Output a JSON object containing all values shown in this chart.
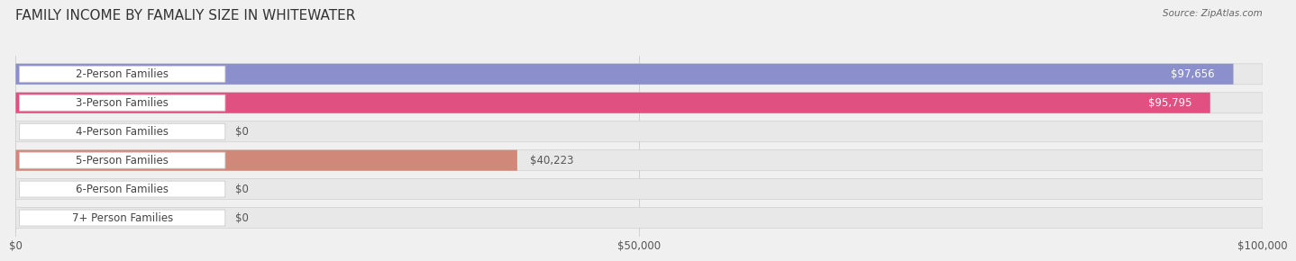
{
  "title": "FAMILY INCOME BY FAMALIY SIZE IN WHITEWATER",
  "source": "Source: ZipAtlas.com",
  "categories": [
    "2-Person Families",
    "3-Person Families",
    "4-Person Families",
    "5-Person Families",
    "6-Person Families",
    "7+ Person Families"
  ],
  "values": [
    97656,
    95795,
    0,
    40223,
    0,
    0
  ],
  "bar_colors": [
    "#8b8fcc",
    "#e05080",
    "#f0c080",
    "#d08878",
    "#a0b8d8",
    "#c0b0cc"
  ],
  "value_labels": [
    "$97,656",
    "$95,795",
    "$0",
    "$40,223",
    "$0",
    "$0"
  ],
  "xlim": [
    0,
    100000
  ],
  "xticks": [
    0,
    50000,
    100000
  ],
  "xticklabels": [
    "$0",
    "$50,000",
    "$100,000"
  ],
  "background_color": "#f0f0f0",
  "bar_bg_color": "#e8e8e8",
  "title_fontsize": 11,
  "label_fontsize": 8.5,
  "value_fontsize": 8.5,
  "figsize": [
    14.06,
    3.05
  ]
}
